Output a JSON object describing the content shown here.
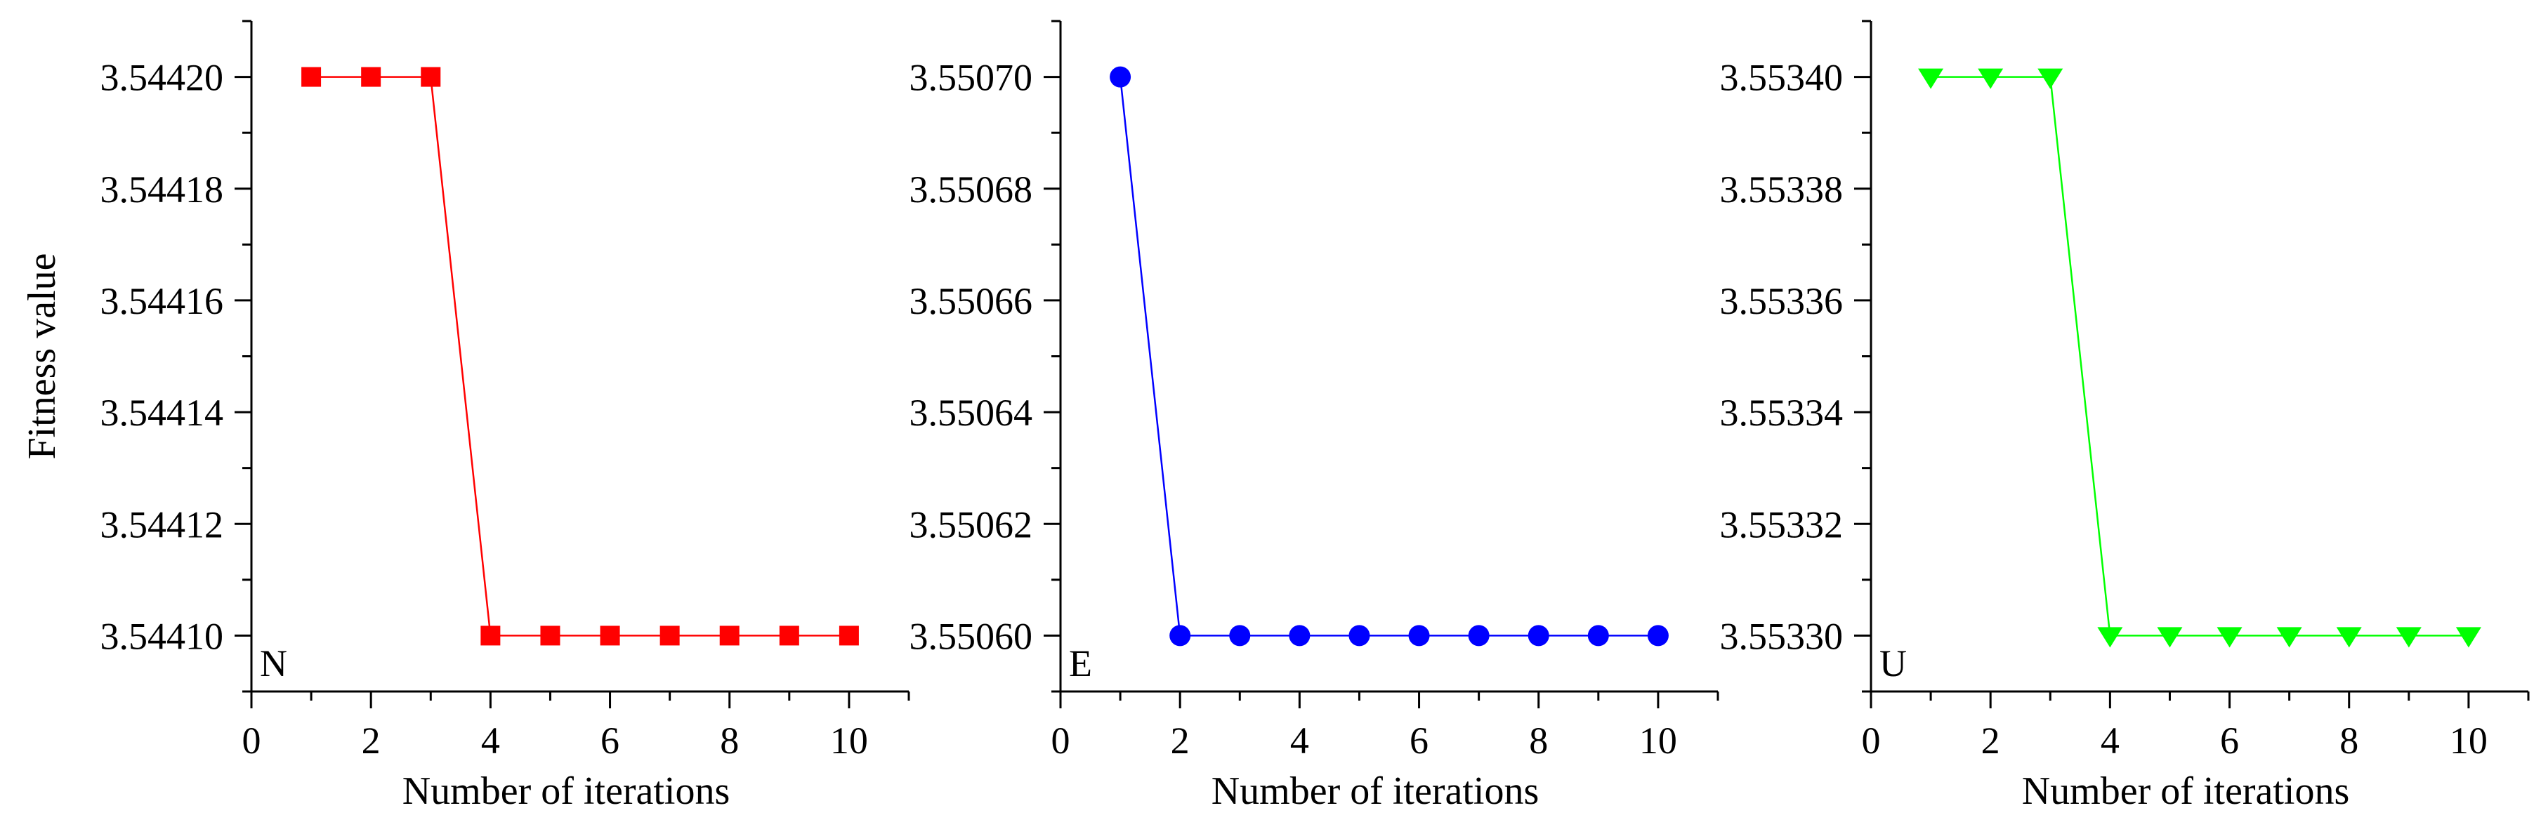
{
  "chart_data": [
    {
      "type": "line",
      "panel_label": "N",
      "xlabel": "Number of iterations",
      "ylabel": "Fitness value",
      "xlim": [
        0,
        11
      ],
      "ylim": [
        3.54409,
        3.54421
      ],
      "xticks": [
        "0",
        "2",
        "4",
        "6",
        "8",
        "10"
      ],
      "yticks": [
        "3.54410",
        "3.54412",
        "3.54414",
        "3.54416",
        "3.54418",
        "3.54420"
      ],
      "x": [
        1,
        2,
        3,
        4,
        5,
        6,
        7,
        8,
        9,
        10
      ],
      "series": [
        {
          "values": [
            3.5442,
            3.5442,
            3.5442,
            3.5441,
            3.5441,
            3.5441,
            3.5441,
            3.5441,
            3.5441,
            3.5441
          ],
          "color": "#ff0000",
          "marker": "square"
        }
      ]
    },
    {
      "type": "line",
      "panel_label": "E",
      "xlabel": "Number of iterations",
      "ylabel": "",
      "xlim": [
        0,
        11
      ],
      "ylim": [
        3.55059,
        3.55071
      ],
      "xticks": [
        "0",
        "2",
        "4",
        "6",
        "8",
        "10"
      ],
      "yticks": [
        "3.55060",
        "3.55062",
        "3.55064",
        "3.55066",
        "3.55068",
        "3.55070"
      ],
      "x": [
        1,
        2,
        3,
        4,
        5,
        6,
        7,
        8,
        9,
        10
      ],
      "series": [
        {
          "values": [
            3.5507,
            3.5506,
            3.5506,
            3.5506,
            3.5506,
            3.5506,
            3.5506,
            3.5506,
            3.5506,
            3.5506
          ],
          "color": "#0000ff",
          "marker": "circle"
        }
      ]
    },
    {
      "type": "line",
      "panel_label": "U",
      "xlabel": "Number of iterations",
      "ylabel": "",
      "xlim": [
        0,
        11
      ],
      "ylim": [
        3.55329,
        3.55341
      ],
      "xticks": [
        "0",
        "2",
        "4",
        "6",
        "8",
        "10"
      ],
      "yticks": [
        "3.55330",
        "3.55332",
        "3.55334",
        "3.55336",
        "3.55338",
        "3.55340"
      ],
      "x": [
        1,
        2,
        3,
        4,
        5,
        6,
        7,
        8,
        9,
        10
      ],
      "series": [
        {
          "values": [
            3.5534,
            3.5534,
            3.5534,
            3.5533,
            3.5533,
            3.5533,
            3.5533,
            3.5533,
            3.5533,
            3.5533
          ],
          "color": "#00ff00",
          "marker": "triangle-down"
        }
      ]
    }
  ]
}
